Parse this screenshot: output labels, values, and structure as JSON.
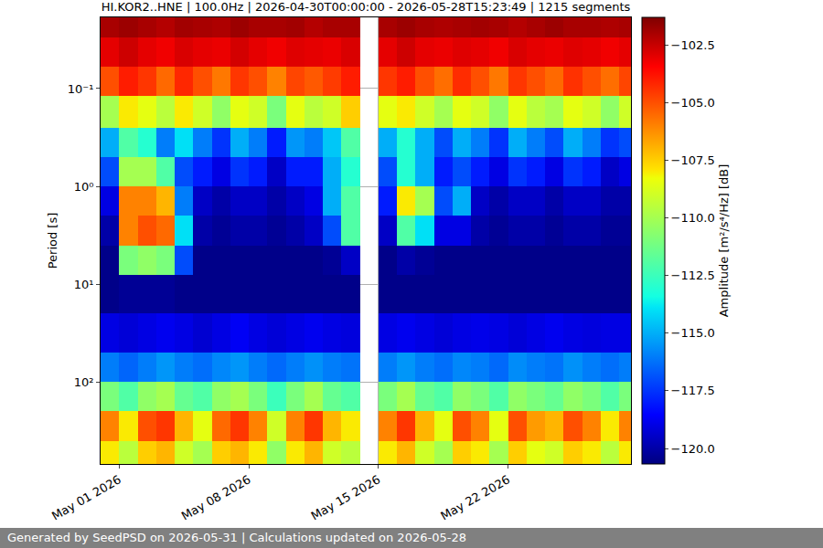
{
  "chart_data": {
    "type": "heatmap",
    "title": "HI.KOR2..HNE | 100.0Hz | 2026-04-30T00:00:00 - 2026-05-28T15:23:49 | 1215 segments",
    "y_label": "Period [s]",
    "colorbar_label": "Amplitude [m²/s⁴/Hz] [dB]",
    "footer": "Generated by SeedPSD on 2026-05-31 | Calculations updated on 2026-05-28",
    "log": "y",
    "grid": true,
    "xlim": [
      "2026-04-30T00:00:00",
      "2026-05-28T15:23:49"
    ],
    "xticks": [
      {
        "value": "2026-05-01",
        "label": "May 01 2026"
      },
      {
        "value": "2026-05-08",
        "label": "May 08 2026"
      },
      {
        "value": "2026-05-15",
        "label": "May 15 2026"
      },
      {
        "value": "2026-05-22",
        "label": "May 22 2026"
      }
    ],
    "ylim": [
      690,
      0.0187
    ],
    "yticks": [
      {
        "value": 0.1,
        "label": "10⁻¹"
      },
      {
        "value": 1,
        "label": "10⁰"
      },
      {
        "value": 10,
        "label": "10¹"
      },
      {
        "value": 100,
        "label": "10²"
      }
    ],
    "zlim": [
      -120.67,
      -101.31
    ],
    "zticks": [
      {
        "value": -102.5,
        "label": "−102.5"
      },
      {
        "value": -105,
        "label": "−105.0"
      },
      {
        "value": -107.5,
        "label": "−107.5"
      },
      {
        "value": -110,
        "label": "−110.0"
      },
      {
        "value": -112.5,
        "label": "−112.5"
      },
      {
        "value": -115,
        "label": "−115.0"
      },
      {
        "value": -117.5,
        "label": "−117.5"
      },
      {
        "value": -120,
        "label": "−120.0"
      }
    ],
    "x_edges": [
      "2026-04-30",
      "2026-05-01",
      "2026-05-02",
      "2026-05-03",
      "2026-05-04",
      "2026-05-05",
      "2026-05-06",
      "2026-05-07",
      "2026-05-08",
      "2026-05-09",
      "2026-05-10",
      "2026-05-11",
      "2026-05-12",
      "2026-05-13",
      "2026-05-14",
      "2026-05-15",
      "2026-05-16",
      "2026-05-17",
      "2026-05-18",
      "2026-05-19",
      "2026-05-20",
      "2026-05-21",
      "2026-05-22",
      "2026-05-23",
      "2026-05-24",
      "2026-05-25",
      "2026-05-26",
      "2026-05-27",
      "2026-05-28",
      "2026-05-29"
    ],
    "y_edges": [
      0.0187,
      0.03,
      0.06,
      0.12,
      0.25,
      0.5,
      1,
      2,
      4,
      8,
      20,
      50,
      100,
      200,
      400,
      690
    ],
    "z": [
      [
        -102,
        -101.8,
        -102,
        -102.2,
        -101.9,
        -102,
        -102.1,
        -101.8,
        -102,
        -102,
        -101.9,
        -102.2,
        -102,
        -102,
        null,
        -102,
        -101.8,
        -102,
        -102.1,
        -102,
        -101.9,
        -102,
        -102.2,
        -102,
        -101.8,
        -102,
        -102,
        -102.1,
        -102
      ],
      [
        -103,
        -102.6,
        -103,
        -103.2,
        -102.8,
        -103,
        -103.1,
        -102.7,
        -103,
        -103.2,
        -102.9,
        -103,
        -103.1,
        -102.8,
        null,
        -103,
        -102.6,
        -103,
        -103.1,
        -102.9,
        -103,
        -103.2,
        -102.8,
        -103,
        -103.1,
        -102.9,
        -103,
        -103.2,
        -103
      ],
      [
        -105,
        -104,
        -104.5,
        -105.5,
        -104.2,
        -105,
        -105.8,
        -104.5,
        -105,
        -106,
        -104.8,
        -105.2,
        -104.6,
        -104,
        null,
        -104.5,
        -104,
        -105,
        -105.6,
        -104.3,
        -105,
        -105.8,
        -104.5,
        -105,
        -105.5,
        -104.4,
        -105,
        -105.6,
        -104.8
      ],
      [
        -110,
        -108,
        -108.5,
        -109.5,
        -108,
        -109,
        -110.5,
        -108.5,
        -109,
        -111,
        -108.5,
        -109.5,
        -109,
        -107.5,
        null,
        -108.5,
        -108,
        -109,
        -110,
        -108.5,
        -109,
        -110.5,
        -108.5,
        -109.5,
        -110,
        -108.5,
        -109,
        -110.5,
        -109
      ],
      [
        -115,
        -112,
        -113,
        -116,
        -114,
        -116,
        -117.5,
        -115,
        -116,
        -118,
        -115.5,
        -116,
        -114.5,
        -112,
        null,
        -115,
        -113,
        -115,
        -117,
        -115,
        -116,
        -117.5,
        -115,
        -116,
        -117,
        -115,
        -116,
        -117.5,
        -117
      ],
      [
        -117,
        -110,
        -110,
        -112,
        -117,
        -118,
        -119,
        -117.5,
        -118,
        -119.5,
        -118,
        -118,
        -115,
        -113,
        null,
        -117,
        -113,
        -115,
        -118,
        -117,
        -118,
        -119,
        -117.5,
        -118,
        -119,
        -117.5,
        -118,
        -119.5,
        -119
      ],
      [
        -119,
        -106,
        -106,
        -107,
        -116,
        -119.5,
        -120,
        -119.5,
        -119.5,
        -120,
        -119.5,
        -119,
        -115,
        -112,
        null,
        -118,
        -108,
        -110,
        -117,
        -115,
        -119.5,
        -120,
        -119.5,
        -119.5,
        -120,
        -119.5,
        -119.5,
        -120,
        -120
      ],
      [
        -120,
        -106,
        -105,
        -105.5,
        -114,
        -120,
        -120.3,
        -120,
        -120,
        -120.3,
        -120,
        -119.5,
        -117,
        -112,
        null,
        -119.5,
        -112,
        -114,
        -119,
        -119,
        -120,
        -120.3,
        -120,
        -120,
        -120.3,
        -120,
        -120,
        -120.3,
        -120.3
      ],
      [
        -120.5,
        -111,
        -110.5,
        -111,
        -117,
        -120.5,
        -120.5,
        -120.5,
        -120.5,
        -120.5,
        -120.5,
        -120.5,
        -120.3,
        -119.5,
        null,
        -120.5,
        -120,
        -120.3,
        -120.5,
        -120.5,
        -120.5,
        -120.5,
        -120.5,
        -120.5,
        -120.5,
        -120.5,
        -120.5,
        -120.5,
        -120.5
      ],
      [
        -120.5,
        -120.3,
        -120.3,
        -120.3,
        -120.5,
        -120.5,
        -120.5,
        -120.5,
        -120.5,
        -120.5,
        -120.5,
        -120.5,
        -120.5,
        -120.5,
        null,
        -120.5,
        -120.5,
        -120.5,
        -120.5,
        -120.5,
        -120.5,
        -120.5,
        -120.5,
        -120.5,
        -120.5,
        -120.5,
        -120.5,
        -120.5,
        -120.5
      ],
      [
        -119,
        -119.2,
        -119,
        -118.8,
        -119,
        -119.3,
        -119,
        -118.7,
        -119,
        -119.2,
        -119,
        -118.8,
        -119,
        -119.1,
        null,
        -119,
        -118.8,
        -119,
        -119.2,
        -119,
        -118.9,
        -119,
        -119.2,
        -119,
        -118.8,
        -119,
        -119.1,
        -119,
        -119
      ],
      [
        -116,
        -116.5,
        -116,
        -115.5,
        -116,
        -116.3,
        -115.8,
        -115.5,
        -116,
        -116.4,
        -116,
        -115.6,
        -116,
        -116.2,
        null,
        -116,
        -115.5,
        -116,
        -116.3,
        -115.8,
        -116,
        -116.4,
        -115.7,
        -116,
        -116.2,
        -115.6,
        -116,
        -116.3,
        -116
      ],
      [
        -111,
        -112,
        -110.5,
        -110,
        -111.5,
        -112,
        -110.5,
        -110,
        -111,
        -112.5,
        -111,
        -110,
        -111.5,
        -112,
        null,
        -111,
        -110,
        -111.5,
        -112,
        -110.5,
        -111,
        -112,
        -110.5,
        -111,
        -111.5,
        -110.5,
        -111,
        -112,
        -111
      ],
      [
        -106,
        -108,
        -105,
        -104.5,
        -107,
        -108.5,
        -105.5,
        -104.5,
        -106,
        -109,
        -106,
        -104.5,
        -107,
        -108,
        null,
        -106,
        -104.5,
        -107,
        -108.5,
        -105,
        -106,
        -108.5,
        -105,
        -106.5,
        -107,
        -105,
        -106,
        -108,
        -106
      ],
      [
        -108,
        -109.5,
        -107.5,
        -107,
        -109,
        -110,
        -107.5,
        -107,
        -108,
        -110.5,
        -108,
        -107,
        -109,
        -109.5,
        null,
        -108,
        -107,
        -109,
        -110,
        -107.5,
        -108,
        -110,
        -107.5,
        -108.5,
        -109,
        -107.5,
        -108,
        -109.5,
        -108
      ]
    ]
  }
}
